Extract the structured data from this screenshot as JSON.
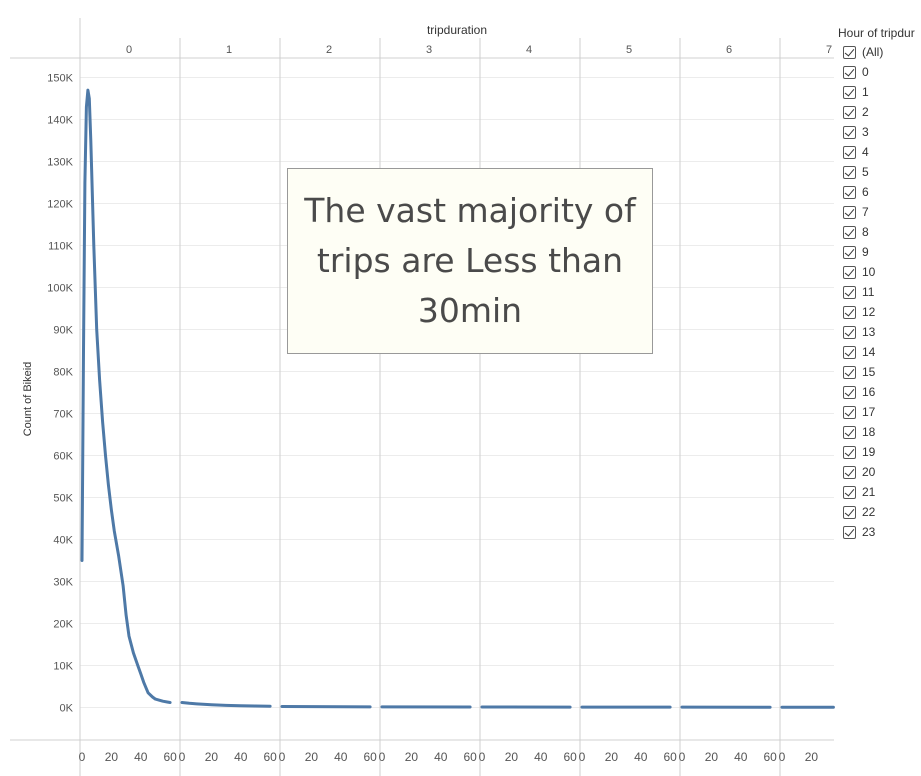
{
  "chart_data": {
    "type": "line",
    "title": "",
    "top_axis_title": "tripduration",
    "ylabel": "Count of Bikeid",
    "panels": [
      "0",
      "1",
      "2",
      "3",
      "4",
      "5",
      "6",
      "7"
    ],
    "x_tick_labels": [
      "0",
      "20",
      "40",
      "60"
    ],
    "y_ticks": [
      0,
      10000,
      20000,
      30000,
      40000,
      50000,
      60000,
      70000,
      80000,
      90000,
      100000,
      110000,
      120000,
      130000,
      140000,
      150000
    ],
    "y_tick_labels": [
      "0K",
      "10K",
      "20K",
      "30K",
      "40K",
      "50K",
      "60K",
      "70K",
      "80K",
      "90K",
      "100K",
      "110K",
      "120K",
      "130K",
      "140K",
      "150K"
    ],
    "ylim": [
      0,
      152000
    ],
    "xlim_per_panel": [
      0,
      67
    ],
    "grid": true,
    "series_color": "#4e79a7",
    "series": [
      {
        "panel": "0",
        "x": [
          0,
          1,
          2,
          3,
          4,
          5,
          6,
          8,
          10,
          12,
          14,
          16,
          18,
          20,
          22,
          25,
          28,
          30,
          32,
          35,
          38,
          40,
          42,
          45,
          48,
          50,
          52,
          55,
          58,
          60
        ],
        "y": [
          35000,
          85000,
          125000,
          143000,
          147000,
          145000,
          135000,
          110000,
          90000,
          78000,
          68000,
          60000,
          53000,
          47000,
          42000,
          36000,
          29000,
          22000,
          17000,
          13000,
          10000,
          8000,
          6000,
          3500,
          2500,
          2000,
          1800,
          1500,
          1300,
          1200
        ]
      },
      {
        "panel": "1",
        "x": [
          0,
          5,
          10,
          20,
          30,
          40,
          50,
          60
        ],
        "y": [
          1200,
          1000,
          850,
          650,
          500,
          400,
          350,
          300
        ]
      },
      {
        "panel": "2",
        "x": [
          0,
          60
        ],
        "y": [
          250,
          150
        ]
      },
      {
        "panel": "3",
        "x": [
          0,
          60
        ],
        "y": [
          150,
          120
        ]
      },
      {
        "panel": "4",
        "x": [
          0,
          60
        ],
        "y": [
          120,
          100
        ]
      },
      {
        "panel": "5",
        "x": [
          0,
          60
        ],
        "y": [
          100,
          90
        ]
      },
      {
        "panel": "6",
        "x": [
          0,
          60
        ],
        "y": [
          90,
          80
        ]
      },
      {
        "panel": "7",
        "x": [
          0,
          35
        ],
        "y": [
          80,
          70
        ]
      }
    ],
    "annotation": "The vast majority of trips are Less than 30min"
  },
  "legend": {
    "title": "Hour of tripdur",
    "items": [
      "(All)",
      "0",
      "1",
      "2",
      "3",
      "4",
      "5",
      "6",
      "7",
      "8",
      "9",
      "10",
      "11",
      "12",
      "13",
      "14",
      "15",
      "16",
      "17",
      "18",
      "19",
      "20",
      "21",
      "22",
      "23"
    ]
  }
}
